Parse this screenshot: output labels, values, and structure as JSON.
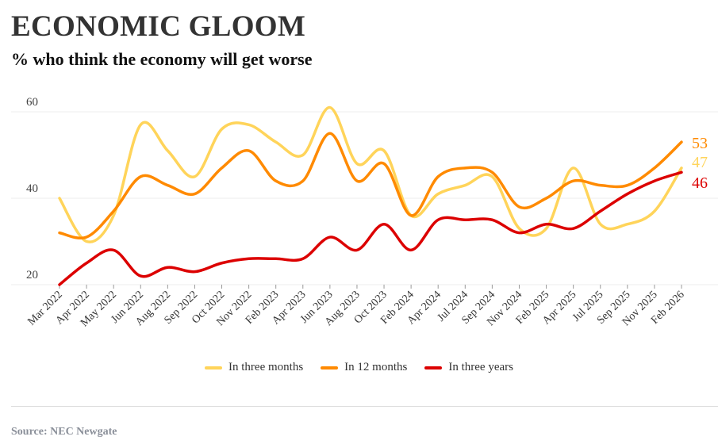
{
  "title": "ECONOMIC GLOOM",
  "subtitle": "% who think the economy will get worse",
  "source": "Source: NEC Newgate",
  "chart_data": {
    "type": "line",
    "title": "ECONOMIC GLOOM",
    "subtitle": "% who think the economy will get worse",
    "categories": [
      "Mar 2022",
      "Apr 2022",
      "May 2022",
      "Jun 2022",
      "Aug 2022",
      "Sep 2022",
      "Oct 2022",
      "Nov 2022",
      "Feb 2023",
      "Apr 2023",
      "Jun 2023",
      "Aug 2023",
      "Oct 2023",
      "Feb 2024",
      "Apr 2024",
      "Jul 2024",
      "Sep 2024",
      "Nov 2024",
      "Feb 2025",
      "Apr 2025",
      "Jul 2025",
      "Sep 2025",
      "Nov 2025",
      "Feb 2026"
    ],
    "yticks": [
      20,
      40,
      60
    ],
    "ylim": [
      20,
      62
    ],
    "grid": true,
    "legend": "bottom",
    "series": [
      {
        "name": "In three months",
        "color": "#ffd45a",
        "values": [
          40,
          30,
          36,
          57,
          51,
          45,
          56,
          57,
          53,
          50,
          61,
          48,
          51,
          36,
          41,
          43,
          45,
          33,
          33,
          47,
          34,
          34,
          37,
          47
        ],
        "end_label": "47"
      },
      {
        "name": "In 12 months",
        "color": "#ff8a00",
        "values": [
          32,
          31,
          37,
          45,
          43,
          41,
          47,
          51,
          44,
          44,
          55,
          44,
          48,
          36,
          45,
          47,
          46,
          38,
          40,
          44,
          43,
          43,
          47,
          53
        ],
        "end_label": "53"
      },
      {
        "name": "In three years",
        "color": "#dc0000",
        "values": [
          20,
          25,
          28,
          22,
          24,
          23,
          25,
          26,
          26,
          26,
          31,
          28,
          34,
          28,
          35,
          35,
          35,
          32,
          34,
          33,
          37,
          41,
          44,
          46
        ],
        "end_label": "46"
      }
    ]
  }
}
